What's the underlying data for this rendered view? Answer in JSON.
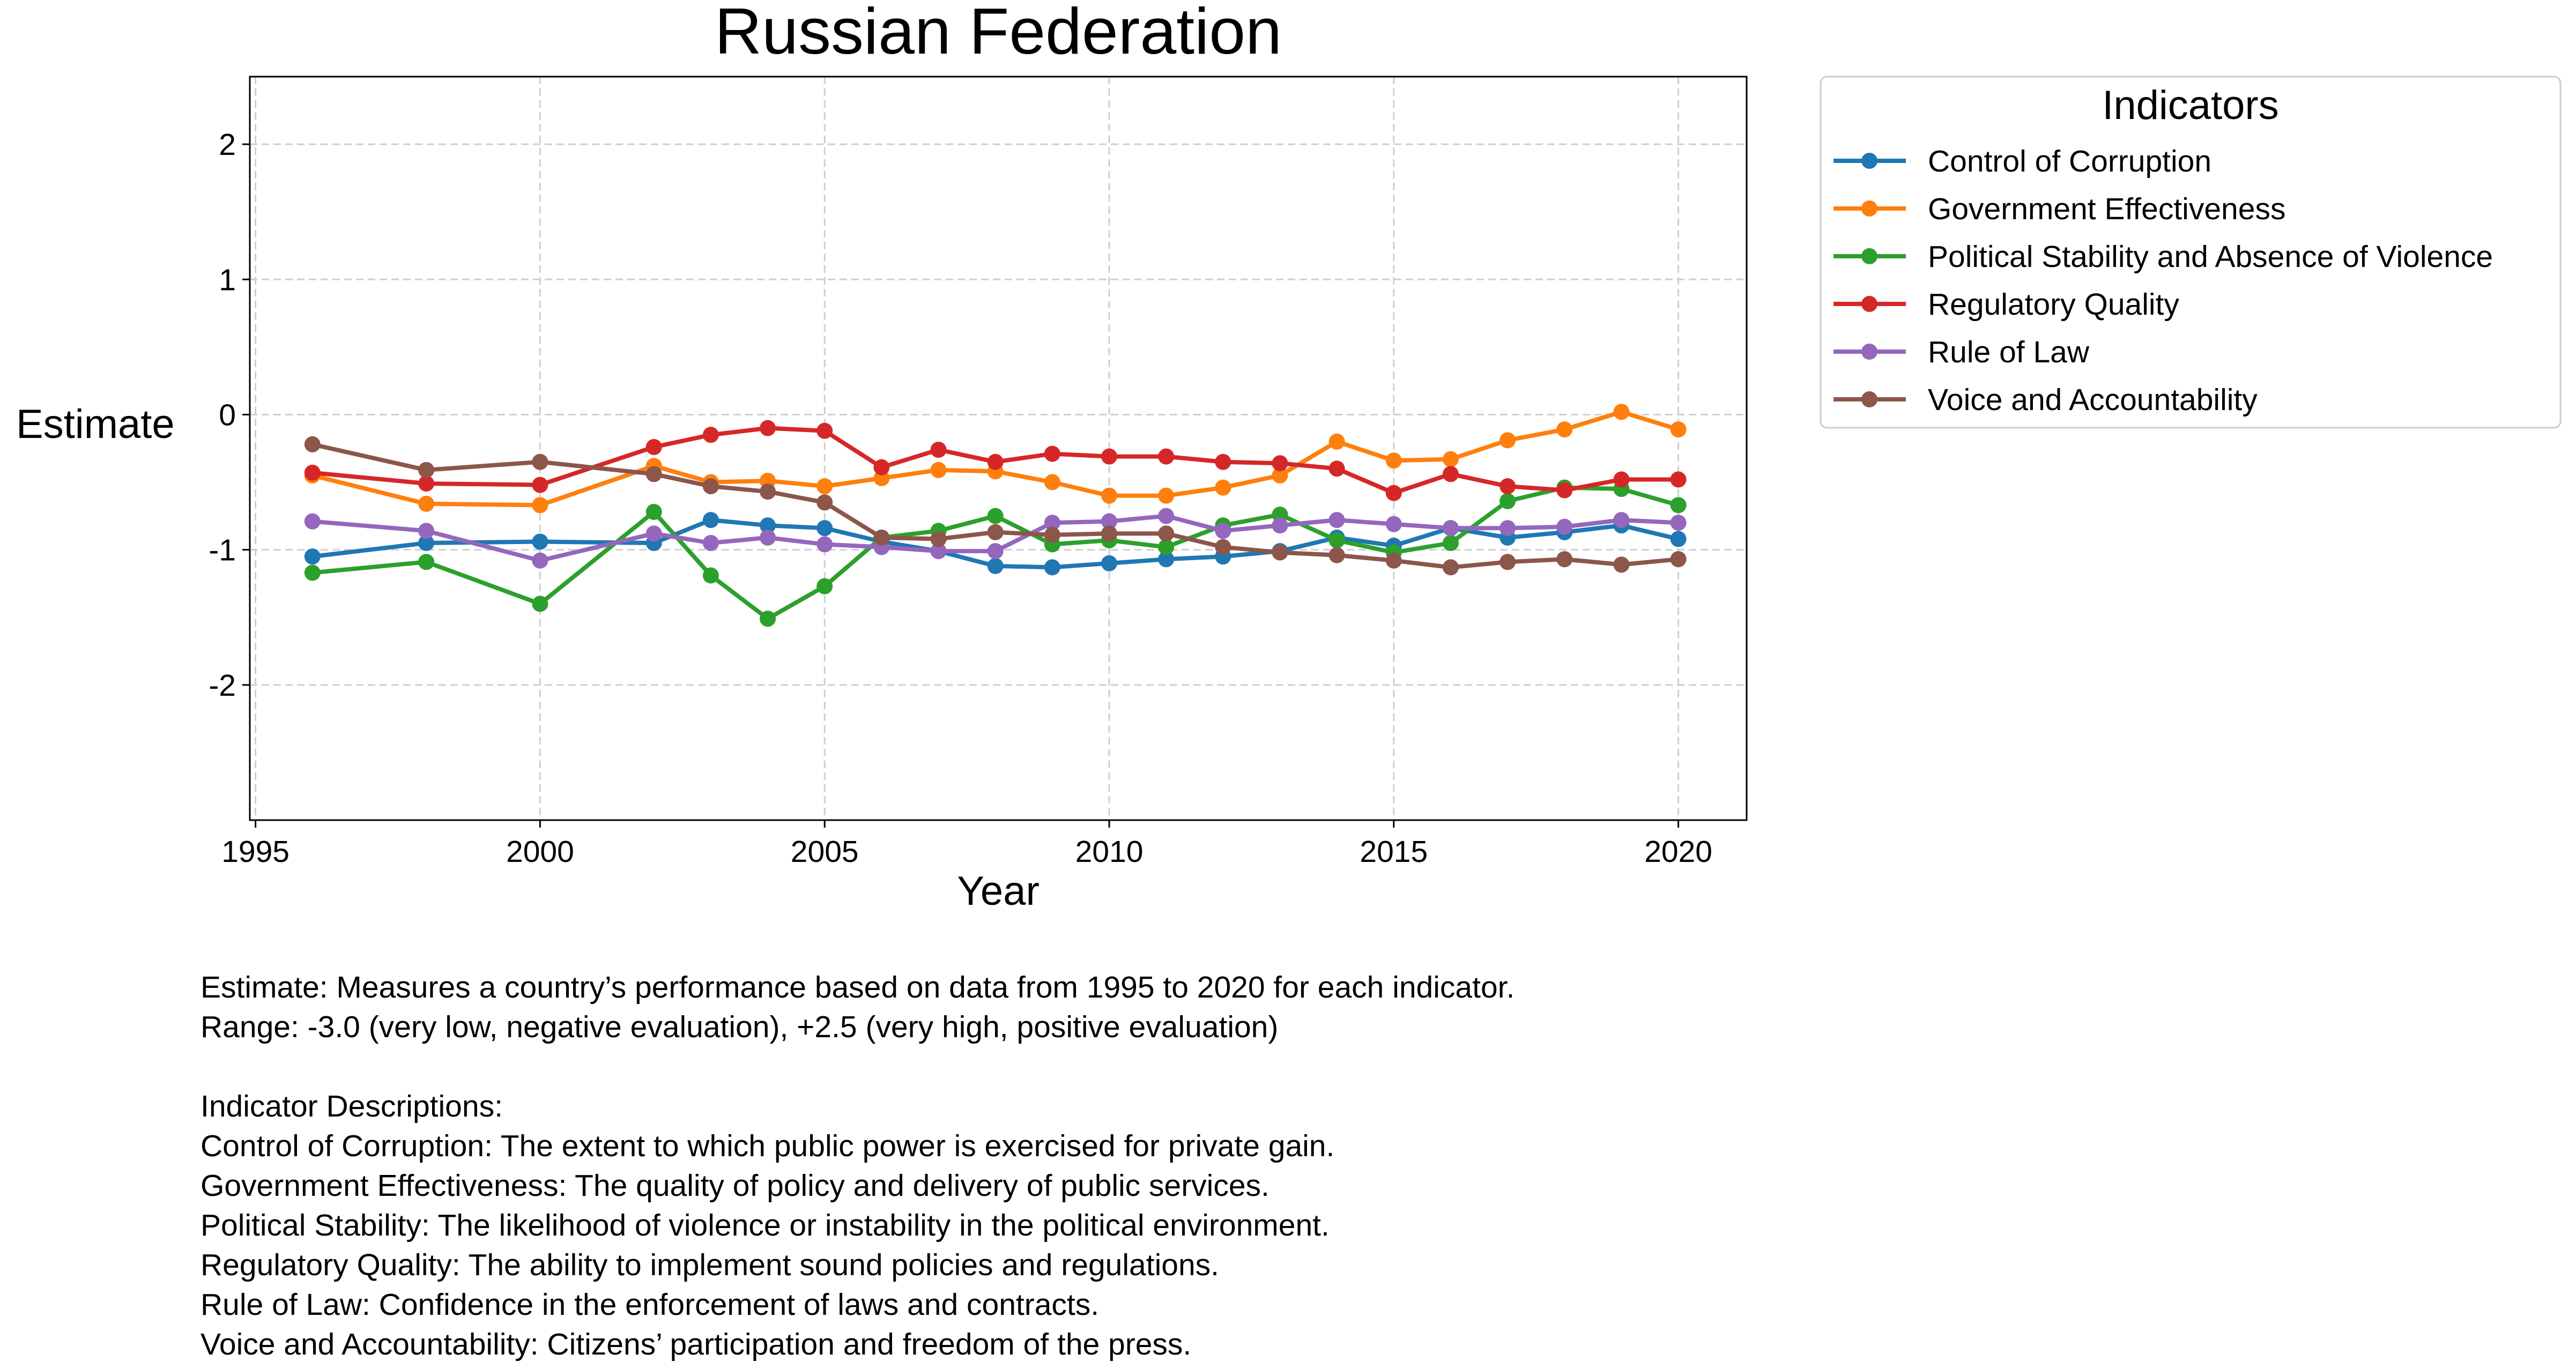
{
  "chart_data": {
    "type": "line",
    "title": "Russian Federation",
    "xlabel": "Year",
    "ylabel": "Estimate",
    "xlim": [
      1994.9,
      2021.2
    ],
    "ylim": [
      -3.0,
      2.5
    ],
    "xticks": [
      1995,
      2000,
      2005,
      2010,
      2015,
      2020
    ],
    "yticks": [
      -2,
      -1,
      0,
      1,
      2
    ],
    "grid": true,
    "legend_title": "Indicators",
    "legend_position": "outside-top-right",
    "x": [
      1996,
      1998,
      2000,
      2002,
      2003,
      2004,
      2005,
      2006,
      2007,
      2008,
      2009,
      2010,
      2011,
      2012,
      2013,
      2014,
      2015,
      2016,
      2017,
      2018,
      2019,
      2020
    ],
    "series": [
      {
        "name": "Control of Corruption",
        "color": "#1f77b4",
        "values": [
          -1.05,
          -0.95,
          -0.94,
          -0.95,
          -0.78,
          -0.82,
          -0.84,
          -0.94,
          -1.01,
          -1.12,
          -1.13,
          -1.1,
          -1.07,
          -1.05,
          -1.01,
          -0.91,
          -0.97,
          -0.84,
          -0.91,
          -0.87,
          -0.82,
          -0.92
        ]
      },
      {
        "name": "Government Effectiveness",
        "color": "#ff7f0e",
        "values": [
          -0.45,
          -0.66,
          -0.67,
          -0.38,
          -0.5,
          -0.49,
          -0.53,
          -0.47,
          -0.41,
          -0.42,
          -0.5,
          -0.6,
          -0.6,
          -0.54,
          -0.45,
          -0.2,
          -0.34,
          -0.33,
          -0.19,
          -0.11,
          0.02,
          -0.11
        ]
      },
      {
        "name": "Political Stability and Absence of Violence",
        "color": "#2ca02c",
        "values": [
          -1.17,
          -1.09,
          -1.4,
          -0.72,
          -1.19,
          -1.51,
          -1.27,
          -0.91,
          -0.86,
          -0.75,
          -0.96,
          -0.93,
          -0.98,
          -0.82,
          -0.74,
          -0.93,
          -1.02,
          -0.95,
          -0.64,
          -0.54,
          -0.55,
          -0.67
        ]
      },
      {
        "name": "Regulatory Quality",
        "color": "#d62728",
        "values": [
          -0.43,
          -0.51,
          -0.52,
          -0.24,
          -0.15,
          -0.1,
          -0.12,
          -0.39,
          -0.26,
          -0.35,
          -0.29,
          -0.31,
          -0.31,
          -0.35,
          -0.36,
          -0.4,
          -0.58,
          -0.44,
          -0.53,
          -0.56,
          -0.48,
          -0.48
        ]
      },
      {
        "name": "Rule of Law",
        "color": "#9467bd",
        "values": [
          -0.79,
          -0.86,
          -1.08,
          -0.88,
          -0.95,
          -0.91,
          -0.96,
          -0.98,
          -1.01,
          -1.01,
          -0.8,
          -0.79,
          -0.75,
          -0.86,
          -0.82,
          -0.78,
          -0.81,
          -0.84,
          -0.84,
          -0.83,
          -0.78,
          -0.8
        ]
      },
      {
        "name": "Voice and Accountability",
        "color": "#8c564b",
        "values": [
          -0.22,
          -0.41,
          -0.35,
          -0.44,
          -0.53,
          -0.57,
          -0.65,
          -0.91,
          -0.92,
          -0.87,
          -0.89,
          -0.88,
          -0.88,
          -0.98,
          -1.02,
          -1.04,
          -1.08,
          -1.13,
          -1.09,
          -1.07,
          -1.11,
          -1.07
        ]
      }
    ]
  },
  "notes": {
    "estimate_line": "Estimate: Measures a country’s performance based on data from 1995 to 2020 for each indicator.",
    "range_line": "Range: -3.0 (very low, negative evaluation), +2.5 (very high, positive evaluation)",
    "descriptions_heading": "Indicator Descriptions:",
    "descriptions": [
      "Control of Corruption: The extent to which public power is exercised for private gain.",
      "Government Effectiveness: The quality of policy and delivery of public services.",
      "Political Stability: The likelihood of violence or instability in the political environment.",
      "Regulatory Quality: The ability to implement sound policies and regulations.",
      "Rule of Law: Confidence in the enforcement of laws and contracts.",
      "Voice and Accountability: Citizens’ participation and freedom of the press."
    ]
  }
}
